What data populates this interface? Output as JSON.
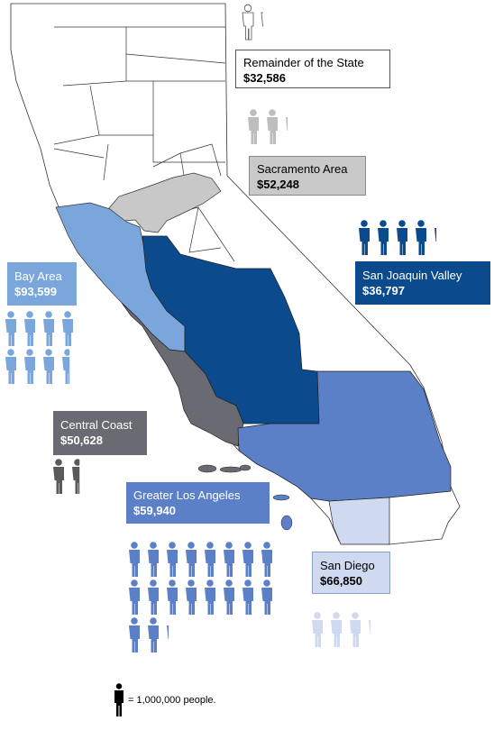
{
  "regions": {
    "remainder": {
      "name": "Remainder of the State",
      "income": "$32,586",
      "color": "#ffffff",
      "fig_color": "#000000",
      "figure_count": 1.1
    },
    "sacramento": {
      "name": "Sacramento Area",
      "income": "$52,248",
      "color": "#c8c8c8",
      "fig_color": "#bdbdbd",
      "figure_count": 2.1
    },
    "bay_area": {
      "name": "Bay Area",
      "income": "$93,599",
      "color": "#7aa6dc",
      "fig_color": "#7aa6dc",
      "figure_count": 7.3
    },
    "san_joaquin": {
      "name": "San Joaquin Valley",
      "income": "$36,797",
      "color": "#0b4a8c",
      "fig_color": "#0b4a8c",
      "figure_count": 4.1
    },
    "central_coast": {
      "name": "Central Coast",
      "income": "$50,628",
      "color": "#6a6a72",
      "fig_color": "#5a5a5a",
      "figure_count": 1.3
    },
    "los_angeles": {
      "name": "Greater Los Angeles",
      "income": "$59,940",
      "color": "#5b80c8",
      "fig_color": "#5b80c8",
      "figure_count": 18.1
    },
    "san_diego": {
      "name": "San Diego",
      "income": "$66,850",
      "color": "#cfdaf0",
      "fig_color": "#cfdaf0",
      "figure_count": 3.1
    }
  },
  "legend": {
    "text": "= 1,000,000 people.",
    "icon": "person-icon",
    "unit": 1000000
  }
}
